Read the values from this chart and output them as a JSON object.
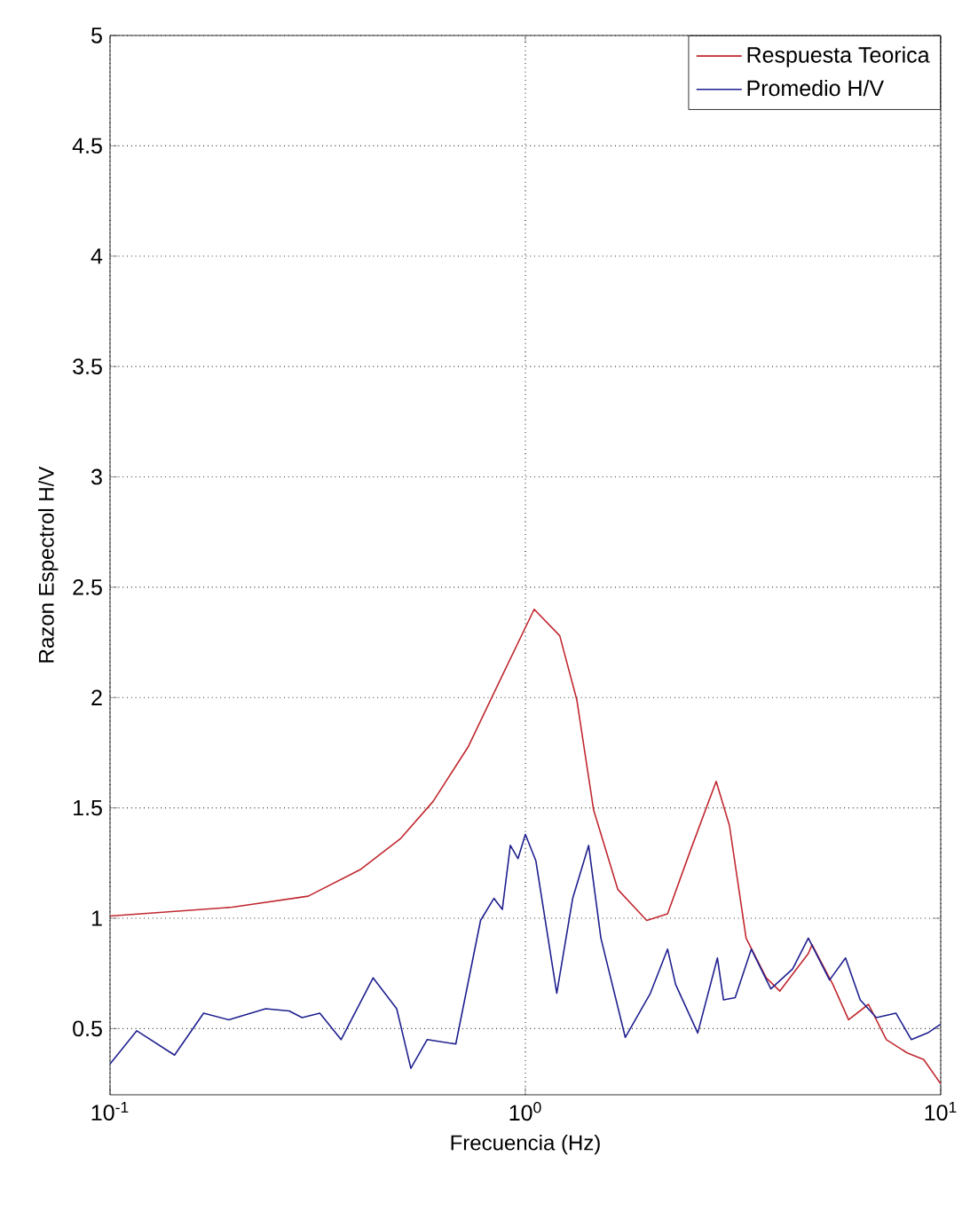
{
  "chart_data": {
    "type": "line",
    "xlabel": "Frecuencia (Hz)",
    "ylabel": "Razon Espectrol H/V",
    "log": "x",
    "xlim": [
      0.1,
      10
    ],
    "xticks": [
      {
        "value": 0.1,
        "label": "10$^{-1}$"
      },
      {
        "value": 1,
        "label": "10$^{0}$"
      },
      {
        "value": 10,
        "label": "10$^{1}$"
      }
    ],
    "ylim": [
      0.2,
      5
    ],
    "yticks": [
      0.5,
      1,
      1.5,
      2,
      2.5,
      3,
      3.5,
      4,
      4.5,
      5
    ],
    "grid": true,
    "legend": "top right",
    "line_style": "solid",
    "marker": "none",
    "series": [
      {
        "name": "Respuesta Teorica",
        "color": "#c0282f",
        "x": [
          0.1,
          0.197,
          0.3,
          0.4,
          0.5,
          0.6,
          0.73,
          0.88,
          1.05,
          1.21,
          1.33,
          1.46,
          1.67,
          1.96,
          2.2,
          2.5,
          2.88,
          3.1,
          3.4,
          3.8,
          4.1,
          4.8,
          4.9,
          5.5,
          6.0,
          6.7,
          7.4,
          8.3,
          9.1,
          10
        ],
        "values": [
          1.01,
          1.05,
          1.1,
          1.22,
          1.36,
          1.53,
          1.78,
          2.1,
          2.4,
          2.28,
          1.99,
          1.49,
          1.13,
          0.99,
          1.02,
          1.31,
          1.62,
          1.42,
          0.91,
          0.73,
          0.67,
          0.84,
          0.88,
          0.7,
          0.54,
          0.61,
          0.45,
          0.39,
          0.36,
          0.25
        ]
      },
      {
        "name": "Promedio H/V",
        "color": "#1f1f8f",
        "x": [
          0.1,
          0.116,
          0.143,
          0.168,
          0.193,
          0.237,
          0.27,
          0.29,
          0.32,
          0.36,
          0.43,
          0.49,
          0.53,
          0.58,
          0.68,
          0.78,
          0.84,
          0.88,
          0.92,
          0.96,
          1.0,
          1.06,
          1.19,
          1.3,
          1.42,
          1.52,
          1.74,
          2.0,
          2.2,
          2.3,
          2.6,
          2.9,
          3.0,
          3.2,
          3.5,
          3.9,
          4.4,
          4.8,
          5.4,
          5.9,
          6.4,
          7.0,
          7.8,
          8.5,
          9.3,
          10
        ],
        "values": [
          0.34,
          0.49,
          0.38,
          0.57,
          0.54,
          0.59,
          0.58,
          0.55,
          0.57,
          0.45,
          0.73,
          0.59,
          0.32,
          0.45,
          0.43,
          0.99,
          1.09,
          1.04,
          1.33,
          1.27,
          1.38,
          1.26,
          0.66,
          1.09,
          1.33,
          0.91,
          0.46,
          0.66,
          0.86,
          0.7,
          0.48,
          0.82,
          0.63,
          0.64,
          0.86,
          0.68,
          0.77,
          0.91,
          0.72,
          0.82,
          0.63,
          0.55,
          0.57,
          0.45,
          0.48,
          0.52
        ]
      }
    ]
  }
}
